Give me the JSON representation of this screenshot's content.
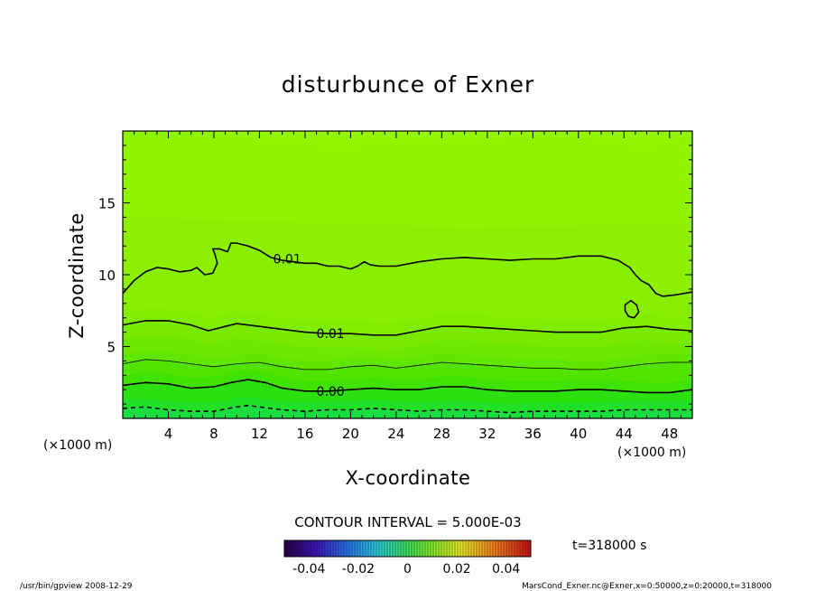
{
  "chart_data": {
    "type": "contour",
    "title": "disturbunce of Exner",
    "xlabel": "X-coordinate",
    "ylabel": "Z-coordinate",
    "x_unit": "(×1000 m)",
    "y_unit": "(×1000 m)",
    "xlim": [
      0,
      50
    ],
    "ylim": [
      0,
      20
    ],
    "x_ticks": [
      4,
      8,
      12,
      16,
      20,
      24,
      28,
      32,
      36,
      40,
      44,
      48
    ],
    "y_ticks": [
      5,
      10,
      15
    ],
    "contour_interval_text": "CONTOUR INTERVAL = 5.000E-03",
    "contour_labels": [
      {
        "text": "0.01",
        "x": 13.2,
        "y": 11.1
      },
      {
        "text": "0.01",
        "x": 17.0,
        "y": 5.9
      },
      {
        "text": "0.00",
        "x": 17.0,
        "y": 1.9
      }
    ],
    "contours": [
      {
        "level": 0.01,
        "points": [
          [
            0,
            8.7
          ],
          [
            1,
            9.6
          ],
          [
            2,
            10.2
          ],
          [
            3,
            10.5
          ],
          [
            4,
            10.4
          ],
          [
            5,
            10.2
          ],
          [
            6,
            10.3
          ],
          [
            6.5,
            10.5
          ],
          [
            7.2,
            10.0
          ],
          [
            7.9,
            10.1
          ],
          [
            8.3,
            10.8
          ],
          [
            8.1,
            11.4
          ],
          [
            7.9,
            11.8
          ],
          [
            8.5,
            11.8
          ],
          [
            9.2,
            11.6
          ],
          [
            9.5,
            12.2
          ],
          [
            10,
            12.2
          ],
          [
            10.5,
            12.1
          ],
          [
            11,
            12.0
          ],
          [
            12,
            11.7
          ],
          [
            13,
            11.2
          ],
          [
            14,
            11.0
          ],
          [
            15,
            10.9
          ],
          [
            16,
            10.8
          ],
          [
            17,
            10.8
          ],
          [
            18,
            10.6
          ],
          [
            19,
            10.6
          ],
          [
            20,
            10.4
          ],
          [
            20.6,
            10.6
          ],
          [
            21.2,
            10.9
          ],
          [
            21.7,
            10.7
          ],
          [
            22.5,
            10.6
          ],
          [
            24,
            10.6
          ],
          [
            26,
            10.9
          ],
          [
            28,
            11.1
          ],
          [
            30,
            11.2
          ],
          [
            32,
            11.1
          ],
          [
            34,
            11.0
          ],
          [
            36,
            11.1
          ],
          [
            38,
            11.1
          ],
          [
            40,
            11.3
          ],
          [
            42,
            11.3
          ],
          [
            43.5,
            11.0
          ],
          [
            44.5,
            10.5
          ],
          [
            45,
            10.0
          ],
          [
            45.5,
            9.6
          ],
          [
            46.2,
            9.3
          ],
          [
            46.8,
            8.7
          ],
          [
            47.4,
            8.5
          ],
          [
            48.5,
            8.6
          ],
          [
            50,
            8.8
          ]
        ]
      },
      {
        "level": 0.01,
        "closed": true,
        "points": [
          [
            44.1,
            7.9
          ],
          [
            44.6,
            8.2
          ],
          [
            45.1,
            7.9
          ],
          [
            45.3,
            7.4
          ],
          [
            44.9,
            7.0
          ],
          [
            44.4,
            7.1
          ],
          [
            44.1,
            7.5
          ],
          [
            44.1,
            7.9
          ]
        ]
      },
      {
        "level": 0.01,
        "points": [
          [
            0,
            6.5
          ],
          [
            2,
            6.8
          ],
          [
            4,
            6.8
          ],
          [
            6,
            6.5
          ],
          [
            7.5,
            6.1
          ],
          [
            9,
            6.4
          ],
          [
            10,
            6.6
          ],
          [
            12,
            6.4
          ],
          [
            14,
            6.2
          ],
          [
            16,
            6.0
          ],
          [
            18,
            5.9
          ],
          [
            20,
            5.9
          ],
          [
            22,
            5.8
          ],
          [
            24,
            5.8
          ],
          [
            26,
            6.1
          ],
          [
            28,
            6.4
          ],
          [
            30,
            6.4
          ],
          [
            32,
            6.3
          ],
          [
            34,
            6.2
          ],
          [
            36,
            6.1
          ],
          [
            38,
            6.0
          ],
          [
            40,
            6.0
          ],
          [
            42,
            6.0
          ],
          [
            44,
            6.3
          ],
          [
            46,
            6.4
          ],
          [
            48,
            6.2
          ],
          [
            50,
            6.1
          ]
        ]
      },
      {
        "level": 0.005,
        "thin": true,
        "points": [
          [
            0,
            3.8
          ],
          [
            2,
            4.1
          ],
          [
            4,
            4.0
          ],
          [
            6,
            3.8
          ],
          [
            8,
            3.6
          ],
          [
            10,
            3.8
          ],
          [
            12,
            3.9
          ],
          [
            14,
            3.6
          ],
          [
            16,
            3.4
          ],
          [
            18,
            3.4
          ],
          [
            20,
            3.6
          ],
          [
            22,
            3.7
          ],
          [
            24,
            3.5
          ],
          [
            26,
            3.7
          ],
          [
            28,
            3.9
          ],
          [
            30,
            3.8
          ],
          [
            32,
            3.7
          ],
          [
            34,
            3.6
          ],
          [
            36,
            3.5
          ],
          [
            38,
            3.5
          ],
          [
            40,
            3.4
          ],
          [
            42,
            3.4
          ],
          [
            44,
            3.6
          ],
          [
            46,
            3.8
          ],
          [
            48,
            3.9
          ],
          [
            50,
            3.9
          ]
        ]
      },
      {
        "level": 0.0,
        "points": [
          [
            0,
            2.3
          ],
          [
            2,
            2.5
          ],
          [
            4,
            2.4
          ],
          [
            6,
            2.1
          ],
          [
            8,
            2.2
          ],
          [
            9.5,
            2.5
          ],
          [
            11,
            2.7
          ],
          [
            12.5,
            2.5
          ],
          [
            14,
            2.1
          ],
          [
            16,
            1.9
          ],
          [
            18,
            1.9
          ],
          [
            20,
            2.0
          ],
          [
            22,
            2.1
          ],
          [
            24,
            2.0
          ],
          [
            26,
            2.0
          ],
          [
            28,
            2.2
          ],
          [
            30,
            2.2
          ],
          [
            32,
            2.0
          ],
          [
            34,
            1.9
          ],
          [
            36,
            1.9
          ],
          [
            38,
            1.9
          ],
          [
            40,
            2.0
          ],
          [
            42,
            2.0
          ],
          [
            44,
            1.9
          ],
          [
            46,
            1.8
          ],
          [
            48,
            1.8
          ],
          [
            50,
            2.0
          ]
        ]
      },
      {
        "level": -0.005,
        "dashed": true,
        "points": [
          [
            0,
            0.7
          ],
          [
            2,
            0.8
          ],
          [
            4,
            0.6
          ],
          [
            6,
            0.5
          ],
          [
            8,
            0.5
          ],
          [
            10,
            0.8
          ],
          [
            11,
            0.9
          ],
          [
            12,
            0.8
          ],
          [
            14,
            0.6
          ],
          [
            16,
            0.5
          ],
          [
            18,
            0.6
          ],
          [
            20,
            0.6
          ],
          [
            22,
            0.7
          ],
          [
            24,
            0.6
          ],
          [
            26,
            0.5
          ],
          [
            28,
            0.6
          ],
          [
            30,
            0.6
          ],
          [
            32,
            0.5
          ],
          [
            34,
            0.4
          ],
          [
            36,
            0.5
          ],
          [
            38,
            0.5
          ],
          [
            40,
            0.5
          ],
          [
            42,
            0.5
          ],
          [
            44,
            0.6
          ],
          [
            46,
            0.6
          ],
          [
            48,
            0.6
          ],
          [
            50,
            0.6
          ]
        ]
      }
    ],
    "colorbar": {
      "ticks": [
        "-0.04",
        "-0.02",
        "0",
        "0.02",
        "0.04"
      ],
      "tick_values": [
        -0.04,
        -0.02,
        0,
        0.02,
        0.04
      ],
      "range": [
        -0.05,
        0.05
      ]
    }
  },
  "time_label": "t=318000 s",
  "footer": {
    "left": "/usr/bin/gpview   2008-12-29",
    "right": "MarsCond_Exner.nc@Exner,x=0:50000,z=0:20000,t=318000"
  }
}
